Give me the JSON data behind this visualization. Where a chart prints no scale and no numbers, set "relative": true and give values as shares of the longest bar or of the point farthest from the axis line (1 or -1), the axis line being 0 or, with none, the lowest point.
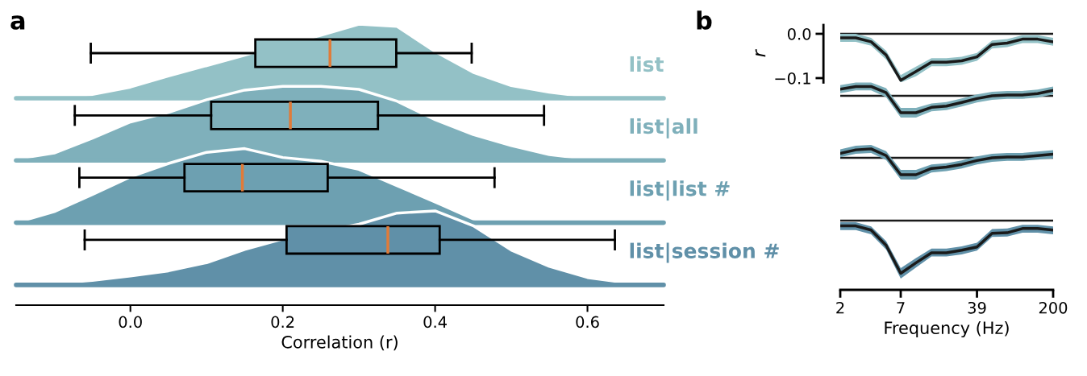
{
  "chart_data": [
    {
      "type": "box",
      "orientation": "horizontal",
      "title": "a",
      "xlabel": "Correlation (r)",
      "tick_labels": "x",
      "categories": [
        "list",
        "list|all",
        "list|list #",
        "list|session #"
      ],
      "colors": [
        "#93c1c6",
        "#7fb0bb",
        "#6da0b1",
        "#6090a8"
      ],
      "boxes": [
        {
          "low": -0.052,
          "q1": 0.164,
          "median": 0.262,
          "q3": 0.349,
          "high": 0.448
        },
        {
          "low": -0.073,
          "q1": 0.106,
          "median": 0.21,
          "q3": 0.325,
          "high": 0.543
        },
        {
          "low": -0.067,
          "q1": 0.071,
          "median": 0.147,
          "q3": 0.259,
          "high": 0.478
        },
        {
          "low": -0.06,
          "q1": 0.205,
          "median": 0.338,
          "q3": 0.406,
          "high": 0.636
        }
      ],
      "xlim": [
        -0.15,
        0.7
      ],
      "xticks": [
        {
          "value": 0,
          "label": "0.0"
        },
        {
          "value": 0.2,
          "label": "0.2"
        },
        {
          "value": 0.4,
          "label": "0.4"
        },
        {
          "value": 0.6,
          "label": "0.6"
        }
      ]
    },
    {
      "type": "area",
      "relative": true,
      "tick_labels": false,
      "xlim": [
        -0.15,
        0.7
      ],
      "x": [
        -0.15,
        -0.1,
        -0.05,
        0,
        0.05,
        0.1,
        0.15,
        0.16,
        0.2,
        0.25,
        0.3,
        0.35,
        0.4,
        0.45,
        0.5,
        0.55,
        0.6,
        0.65,
        0.7
      ],
      "series": [
        {
          "color": "#93c1c6",
          "values": [
            0,
            0,
            0.05,
            0.15,
            0.3,
            0.44,
            0.58,
            0.61,
            null,
            0.85,
            1,
            0.97,
            0.63,
            0.35,
            0.17,
            0.08,
            0.02,
            0,
            0
          ]
        }
      ]
    },
    {
      "type": "area",
      "relative": true,
      "tick_labels": false,
      "xlim": [
        -0.15,
        0.7
      ],
      "x": [
        -0.15,
        -0.1,
        -0.05,
        0,
        0.05,
        0.1,
        0.15,
        0.2,
        0.25,
        0.3,
        0.35,
        0.4,
        0.45,
        0.5,
        0.55,
        0.6,
        0.65,
        0.7
      ],
      "series": [
        {
          "color": "#7fb0bb",
          "values": [
            0.02,
            0.1,
            0.3,
            0.52,
            0.65,
            0.82,
            0.95,
            1,
            1,
            0.96,
            0.8,
            0.55,
            0.35,
            0.2,
            0.08,
            0.02,
            0,
            0
          ]
        }
      ]
    },
    {
      "type": "area",
      "relative": true,
      "tick_labels": false,
      "xlim": [
        -0.15,
        0.7
      ],
      "x": [
        -0.15,
        -0.1,
        -0.05,
        0,
        0.05,
        0.1,
        0.15,
        0.2,
        0.25,
        0.3,
        0.35,
        0.4,
        0.45,
        0.5,
        0.55,
        0.6,
        0.65,
        0.7
      ],
      "series": [
        {
          "color": "#6da0b1",
          "values": [
            0,
            0.15,
            0.38,
            0.62,
            0.8,
            0.95,
            1,
            0.88,
            0.83,
            0.72,
            0.5,
            0.28,
            0.05,
            0,
            0,
            0,
            0,
            0
          ]
        }
      ]
    },
    {
      "type": "area",
      "relative": true,
      "tick_labels": false,
      "xlim": [
        -0.15,
        0.7
      ],
      "x": [
        -0.15,
        -0.1,
        -0.05,
        0,
        0.05,
        0.1,
        0.15,
        0.2,
        0.25,
        0.3,
        0.35,
        0.4,
        0.45,
        0.5,
        0.55,
        0.6,
        0.65,
        0.7
      ],
      "series": [
        {
          "color": "#6090a8",
          "values": [
            0,
            0.02,
            0.06,
            0.12,
            0.19,
            0.3,
            0.48,
            0.62,
            null,
            0.82,
            0.97,
            1,
            0.8,
            0.47,
            0.25,
            0.1,
            0.03,
            0
          ]
        }
      ]
    },
    {
      "type": "line",
      "title": "b",
      "ylabel": "r",
      "tick_labels": "y",
      "log": "x",
      "xlim": [
        2,
        200
      ],
      "ylim": [
        -0.11,
        0.02
      ],
      "yticks": [
        {
          "value": 0,
          "label": "0.0"
        },
        {
          "value": -0.1,
          "label": "−0.1"
        }
      ],
      "ref_lines": [
        {
          "axis": "y",
          "value": 0
        }
      ],
      "x": [
        2,
        2.8,
        3.9,
        5.4,
        7.4,
        10.3,
        14.4,
        19.9,
        27.7,
        38.5,
        53.4,
        74.1,
        103,
        143,
        200
      ],
      "series": [
        {
          "color": "#1a1a1a",
          "values": [
            -0.009,
            -0.009,
            -0.018,
            -0.048,
            -0.105,
            -0.085,
            -0.064,
            -0.064,
            -0.061,
            -0.052,
            -0.024,
            -0.021,
            -0.012,
            -0.012,
            -0.018
          ],
          "lower": [
            -0.018,
            -0.018,
            -0.027,
            -0.058,
            -0.11,
            -0.096,
            -0.073,
            -0.073,
            -0.07,
            -0.061,
            -0.033,
            -0.03,
            -0.021,
            -0.021,
            -0.027
          ],
          "upper": [
            0,
            0,
            -0.009,
            -0.038,
            -0.093,
            -0.074,
            -0.055,
            -0.055,
            -0.052,
            -0.043,
            -0.015,
            -0.012,
            -0.003,
            -0.003,
            -0.009
          ]
        }
      ]
    },
    {
      "type": "line",
      "relative": true,
      "tick_labels": false,
      "log": "x",
      "xlim": [
        2,
        200
      ],
      "ref_lines": [
        {
          "axis": "y",
          "value": 0
        }
      ],
      "x": [
        2,
        2.8,
        3.9,
        5.4,
        7.4,
        10.3,
        14.4,
        19.9,
        27.7,
        38.5,
        53.4,
        74.1,
        103,
        143,
        200
      ],
      "series": [
        {
          "color": "#1a1a1a",
          "values": [
            0.39,
            0.55,
            0.55,
            0.18,
            -1,
            -1,
            -0.68,
            -0.61,
            -0.39,
            -0.16,
            0,
            0.05,
            0.05,
            0.13,
            0.32
          ],
          "lower": [
            0.16,
            0.32,
            0.32,
            -0.08,
            -1.29,
            -1.29,
            -0.92,
            -0.84,
            -0.63,
            -0.39,
            -0.24,
            -0.18,
            -0.18,
            -0.11,
            0.08
          ],
          "upper": [
            0.63,
            0.79,
            0.79,
            0.45,
            -0.71,
            -0.71,
            -0.45,
            -0.37,
            -0.16,
            0.08,
            0.24,
            0.29,
            0.29,
            0.37,
            0.55
          ]
        }
      ]
    },
    {
      "type": "line",
      "relative": true,
      "tick_labels": false,
      "log": "x",
      "xlim": [
        2,
        200
      ],
      "ref_lines": [
        {
          "axis": "y",
          "value": 0
        }
      ],
      "x": [
        2,
        2.8,
        3.9,
        5.4,
        7.4,
        10.3,
        14.4,
        19.9,
        27.7,
        38.5,
        53.4,
        74.1,
        103,
        143,
        200
      ],
      "series": [
        {
          "color": "#1a1a1a",
          "values": [
            0.26,
            0.47,
            0.53,
            0.13,
            -1,
            -1,
            -0.63,
            -0.55,
            -0.39,
            -0.16,
            0,
            0.05,
            0.05,
            0.13,
            0.21
          ],
          "lower": [
            0.03,
            0.24,
            0.29,
            -0.13,
            -1.29,
            -1.29,
            -0.87,
            -0.79,
            -0.63,
            -0.39,
            -0.24,
            -0.18,
            -0.18,
            -0.11,
            -0.03
          ],
          "upper": [
            0.5,
            0.71,
            0.76,
            0.39,
            -0.71,
            -0.71,
            -0.39,
            -0.32,
            -0.16,
            0.08,
            0.24,
            0.29,
            0.29,
            0.37,
            0.45
          ]
        }
      ]
    },
    {
      "type": "line",
      "relative": true,
      "tick_labels": "x",
      "xlabel": "Frequency (Hz)",
      "log": "x",
      "xlim": [
        2,
        200
      ],
      "xticks": [
        2,
        {
          "value": 7.4,
          "label": "7"
        },
        {
          "value": 38.5,
          "label": "39"
        },
        200
      ],
      "ref_lines": [
        {
          "axis": "y",
          "value": 0
        }
      ],
      "x": [
        2,
        2.8,
        3.9,
        5.4,
        7.4,
        10.3,
        14.4,
        19.9,
        27.7,
        38.5,
        53.4,
        74.1,
        103,
        143,
        200
      ],
      "series": [
        {
          "color": "#1a1a1a",
          "values": [
            -0.1,
            -0.1,
            -0.18,
            -0.47,
            -1,
            -0.8,
            -0.61,
            -0.61,
            -0.56,
            -0.5,
            -0.24,
            -0.23,
            -0.15,
            -0.15,
            -0.18
          ],
          "lower": [
            -0.18,
            -0.18,
            -0.26,
            -0.55,
            -1.1,
            -0.89,
            -0.68,
            -0.68,
            -0.64,
            -0.57,
            -0.31,
            -0.3,
            -0.23,
            -0.23,
            -0.26
          ],
          "upper": [
            -0.03,
            -0.03,
            -0.11,
            -0.39,
            -0.9,
            -0.71,
            -0.53,
            -0.53,
            -0.49,
            -0.42,
            -0.16,
            -0.15,
            -0.08,
            -0.08,
            -0.11
          ]
        }
      ]
    }
  ]
}
